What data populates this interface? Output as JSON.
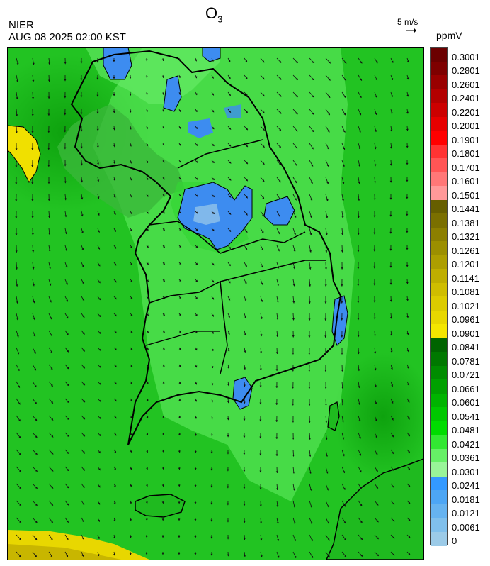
{
  "header": {
    "title_main": "O",
    "title_sub": "3",
    "organization": "NIER",
    "datetime": "AUG 08 2025 02:00 KST",
    "wind_scale_label": "5 m/s",
    "unit": "ppmV"
  },
  "colorbar": {
    "labels": [
      "0.3001",
      "0.2801",
      "0.2601",
      "0.2401",
      "0.2201",
      "0.2001",
      "0.1901",
      "0.1801",
      "0.1701",
      "0.1601",
      "0.1501",
      "0.1441",
      "0.1381",
      "0.1321",
      "0.1261",
      "0.1201",
      "0.1141",
      "0.1081",
      "0.1021",
      "0.0961",
      "0.0901",
      "0.0841",
      "0.0781",
      "0.0721",
      "0.0661",
      "0.0601",
      "0.0541",
      "0.0481",
      "0.0421",
      "0.0361",
      "0.0301",
      "0.0241",
      "0.0181",
      "0.0121",
      "0.0061",
      "0"
    ],
    "colors": [
      "#6b0000",
      "#7e0000",
      "#990000",
      "#b30000",
      "#cc0000",
      "#e60000",
      "#ff0000",
      "#ff3333",
      "#ff5555",
      "#ff7777",
      "#ff9999",
      "#665e00",
      "#7a6f00",
      "#8c7f00",
      "#9c8f00",
      "#ad9e00",
      "#bfae00",
      "#cfbd00",
      "#dccb00",
      "#e8d700",
      "#f4e600",
      "#006400",
      "#007800",
      "#008c00",
      "#00a000",
      "#00b400",
      "#00c800",
      "#00dc00",
      "#33e833",
      "#66f066",
      "#99f599",
      "#3399ff",
      "#4da6f5",
      "#66b3f0",
      "#80c0ec",
      "#9ccbe8"
    ]
  },
  "map": {
    "background_color": "#2ec12e",
    "land_color": "#22cc22",
    "low_ozone_color": "#3d8cf0",
    "light_green_color": "#8cf08c",
    "yellow_color": "#f0e000",
    "boundary_color": "#000000"
  }
}
